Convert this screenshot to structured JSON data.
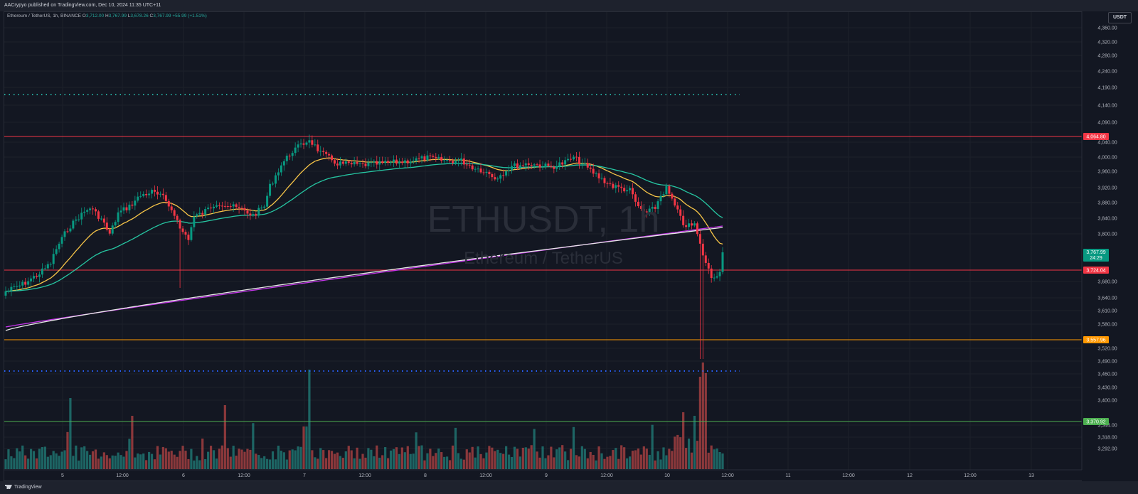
{
  "header": {
    "published_line": "AACrypyo published on TradingView.com, Dec 10, 2024 11:35 UTC+11"
  },
  "legend": {
    "symbol": "Ethereum / TetherUS, 1h, BINANCE",
    "o_label": "O",
    "o_value": "3,712.00",
    "h_label": "H",
    "h_value": "3,767.99",
    "l_label": "L",
    "l_value": "3,678.26",
    "c_label": "C",
    "c_value": "3,767.99",
    "change": "+55.99 (+1.51%)"
  },
  "watermark": {
    "main": "ETHUSDT, 1h",
    "sub": "Ethereum / TetherUS"
  },
  "currency_badge": "USDT",
  "price_axis": {
    "ticks": [
      "4,360.00",
      "4,320.00",
      "4,280.00",
      "4,240.00",
      "4,190.00",
      "4,140.00",
      "4,090.00",
      "4,040.00",
      "4,000.00",
      "3,960.00",
      "3,920.00",
      "3,880.00",
      "3,840.00",
      "3,800.00",
      "3,680.00",
      "3,640.00",
      "3,610.00",
      "3,580.00",
      "3,520.00",
      "3,490.00",
      "3,460.00",
      "3,430.00",
      "3,400.00",
      "3,344.00",
      "3,318.00",
      "3,292.00"
    ]
  },
  "price_lines": [
    {
      "label": "4,064.80",
      "color": "#f23645"
    },
    {
      "label": "3,724.04",
      "color": "#f23645"
    },
    {
      "label": "3,557.96",
      "color": "#ff9800"
    },
    {
      "label": "3,370.92",
      "color": "#4caf50"
    }
  ],
  "current_price": {
    "value": "3,767.99",
    "countdown": "24:29",
    "color": "#089981"
  },
  "time_axis": {
    "labels": [
      "5",
      "12:00",
      "6",
      "12:00",
      "7",
      "12:00",
      "8",
      "12:00",
      "9",
      "12:00",
      "10",
      "12:00",
      "11",
      "12:00",
      "12",
      "12:00",
      "13"
    ]
  },
  "footer": {
    "brand": "TradingView"
  },
  "chart_data": {
    "type": "candlestick",
    "symbol": "ETHUSDT",
    "interval": "1h",
    "exchange": "BINANCE",
    "last": {
      "open": 3712.0,
      "high": 3767.99,
      "low": 3678.26,
      "close": 3767.99,
      "change": 55.99,
      "change_pct": 1.51
    },
    "horizontal_levels": [
      4064.8,
      3724.04,
      3557.96,
      3370.92
    ],
    "dotted_levels_color": {
      "upper": "#26a69a",
      "lower": "#2962ff"
    },
    "moving_average_colors": [
      "#f7c548",
      "#26c6a2",
      "#c335e8",
      "#e8e8e8"
    ],
    "colors": {
      "up": "#089981",
      "down": "#f23645",
      "background": "#131722"
    }
  }
}
